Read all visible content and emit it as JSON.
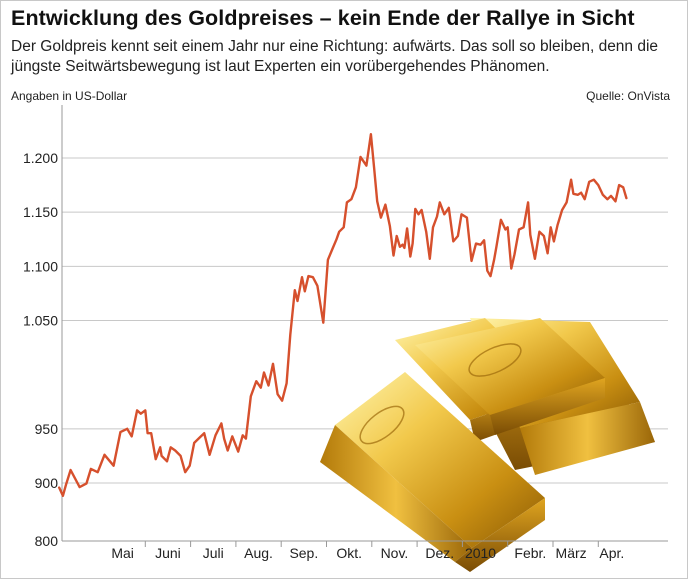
{
  "title": "Entwicklung des Goldpreises – kein Ende der Rallye in Sicht",
  "subtitle": "Der Goldpreis kennt seit einem Jahr nur eine Richtung: aufwärts. Das soll so bleiben, denn die jüngste Seitwärtsbewegung ist laut Experten ein vorübergehendes Phänomen.",
  "unit_note": "Angaben in US-Dollar",
  "source_note": "Quelle: OnVista",
  "colors": {
    "line": "#d6502d",
    "grid": "#c8c8c8",
    "gold": "#d4a017"
  },
  "image_icon": "gold-bars-image",
  "chart_data": {
    "type": "line",
    "title": "Entwicklung des Goldpreises – kein Ende der Rallye in Sicht",
    "ylabel": "Angaben in US-Dollar",
    "xlabel": "",
    "ylim": [
      800,
      1240
    ],
    "y_axis_break": "between 800 and 900",
    "grid": "horizontal",
    "yticks": [
      {
        "value": 800,
        "label": "800"
      },
      {
        "value": 900,
        "label": "900"
      },
      {
        "value": 950,
        "label": "950"
      },
      {
        "value": 1050,
        "label": "1.050"
      },
      {
        "value": 1100,
        "label": "1.100"
      },
      {
        "value": 1150,
        "label": "1.150"
      },
      {
        "value": 1200,
        "label": "1.200"
      }
    ],
    "xticks": [
      "Mai",
      "Juni",
      "Juli",
      "Aug.",
      "Sep.",
      "Okt.",
      "Nov.",
      "Dez.",
      "2010",
      "Febr.",
      "März",
      "Apr."
    ],
    "x_label_positions": [
      0.5,
      1.5,
      2.5,
      3.5,
      4.5,
      5.5,
      6.5,
      7.5,
      8.4,
      9.5,
      10.4,
      11.3
    ],
    "x_month_boundaries": [
      1,
      2,
      3,
      4,
      5,
      6,
      7,
      8,
      9,
      10,
      11
    ],
    "series": [
      {
        "x": [
          -0.9,
          -0.82,
          -0.75,
          -0.65,
          -0.45,
          -0.3,
          -0.2,
          -0.05,
          0.1,
          0.3,
          0.45,
          0.6,
          0.7,
          0.82,
          0.9,
          1.0,
          1.05,
          1.13,
          1.23,
          1.33,
          1.36,
          1.48,
          1.56,
          1.66,
          1.78,
          1.88,
          1.98,
          2.08,
          2.2,
          2.3,
          2.42,
          2.55,
          2.68,
          2.74,
          2.82,
          2.92,
          3.05,
          3.15,
          3.22,
          3.33,
          3.45,
          3.55,
          3.62,
          3.72,
          3.82,
          3.92,
          4.02,
          4.12,
          4.2,
          4.3,
          4.36,
          4.46,
          4.52,
          4.6,
          4.7,
          4.8,
          4.93,
          5.03,
          5.13,
          5.22,
          5.28,
          5.38,
          5.45,
          5.55,
          5.65,
          5.75,
          5.88,
          5.98,
          6.05,
          6.12,
          6.2,
          6.3,
          6.4,
          6.48,
          6.55,
          6.62,
          6.68,
          6.72,
          6.78,
          6.85,
          6.9,
          6.96,
          7.03,
          7.1,
          7.2,
          7.28,
          7.35,
          7.44,
          7.5,
          7.6,
          7.7,
          7.8,
          7.9,
          7.98,
          8.1,
          8.2,
          8.3,
          8.4,
          8.48,
          8.55,
          8.62,
          8.7,
          8.75,
          8.85,
          8.95,
          9.0,
          9.08,
          9.15,
          9.25,
          9.35,
          9.45,
          9.5,
          9.6,
          9.7,
          9.8,
          9.88,
          9.95,
          10.02,
          10.1,
          10.2,
          10.3,
          10.4,
          10.45,
          10.55,
          10.62,
          10.7,
          10.8,
          10.9,
          11.0,
          11.1,
          11.2,
          11.28,
          11.38,
          11.46,
          11.55,
          11.62
        ],
        "y": [
          892,
          878,
          897,
          912,
          893,
          899,
          913,
          910,
          926,
          916,
          947,
          950,
          943,
          967,
          964,
          967,
          946,
          946,
          922,
          933,
          925,
          920,
          933,
          930,
          925,
          910,
          916,
          937,
          942,
          946,
          926,
          944,
          955,
          941,
          930,
          943,
          929,
          944,
          941,
          980,
          994,
          988,
          1002,
          990,
          1010,
          982,
          976,
          992,
          1037,
          1078,
          1068,
          1090,
          1077,
          1091,
          1090,
          1082,
          1048,
          1106,
          1116,
          1125,
          1132,
          1136,
          1159,
          1162,
          1173,
          1201,
          1193,
          1222,
          1191,
          1160,
          1145,
          1157,
          1137,
          1110,
          1128,
          1118,
          1120,
          1117,
          1135,
          1109,
          1121,
          1153,
          1148,
          1152,
          1132,
          1107,
          1136,
          1146,
          1159,
          1148,
          1154,
          1123,
          1128,
          1148,
          1145,
          1105,
          1121,
          1120,
          1124,
          1096,
          1091,
          1106,
          1118,
          1143,
          1134,
          1136,
          1098,
          1111,
          1134,
          1136,
          1159,
          1129,
          1107,
          1132,
          1128,
          1112,
          1136,
          1123,
          1138,
          1152,
          1159,
          1180,
          1167,
          1166,
          1168,
          1162,
          1178,
          1180,
          1175,
          1166,
          1162,
          1165,
          1160,
          1175,
          1173,
          1163
        ]
      }
    ]
  }
}
